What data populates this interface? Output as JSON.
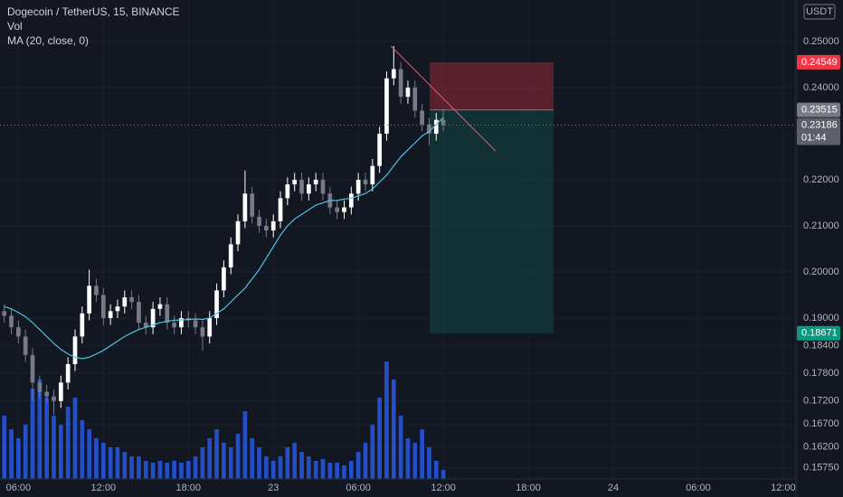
{
  "chart_data": {
    "type": "candlestick",
    "title": "Dogecoin / TetherUS, 15, BINANCE",
    "volume_label": "Vol",
    "ma_label": "MA (20, close, 0)",
    "currency": "USDT",
    "countdown": "01:44",
    "up_color": "#ffffff",
    "down_color": "#787b86",
    "volume_color": "#2962ff",
    "ma_color": "#4fc3e0",
    "grid": true,
    "xlim": [
      -1.3,
      54.9
    ],
    "ylim": [
      0.1551,
      0.259
    ],
    "xticks": [
      {
        "value": 0,
        "label": "06:00"
      },
      {
        "value": 6,
        "label": "12:00"
      },
      {
        "value": 12,
        "label": "18:00"
      },
      {
        "value": 18,
        "label": "23"
      },
      {
        "value": 24,
        "label": "06:00"
      },
      {
        "value": 30,
        "label": "12:00"
      },
      {
        "value": 36,
        "label": "18:00"
      },
      {
        "value": 42,
        "label": "24"
      },
      {
        "value": 48,
        "label": "06:00"
      },
      {
        "value": 54,
        "label": "12:00"
      }
    ],
    "yticks": [
      {
        "value": 0.25,
        "label": "0.25000"
      },
      {
        "value": 0.24,
        "label": "0.24000"
      },
      {
        "value": 0.22,
        "label": "0.22000"
      },
      {
        "value": 0.21,
        "label": "0.21000"
      },
      {
        "value": 0.2,
        "label": "0.20000"
      },
      {
        "value": 0.19,
        "label": "0.19000"
      },
      {
        "value": 0.184,
        "label": "0.18400"
      },
      {
        "value": 0.178,
        "label": "0.17800"
      },
      {
        "value": 0.172,
        "label": "0.17200"
      },
      {
        "value": 0.167,
        "label": "0.16700"
      },
      {
        "value": 0.162,
        "label": "0.16200"
      },
      {
        "value": 0.1575,
        "label": "0.15750"
      }
    ],
    "x": [
      -1,
      -0.5,
      0,
      0.5,
      1,
      1.5,
      2,
      2.5,
      3,
      3.5,
      4,
      4.5,
      5,
      5.5,
      6,
      6.5,
      7,
      7.5,
      8,
      8.5,
      9,
      9.5,
      10,
      10.5,
      11,
      11.5,
      12,
      12.5,
      13,
      13.5,
      14,
      14.5,
      15,
      15.5,
      16,
      16.5,
      17,
      17.5,
      18,
      18.5,
      19,
      19.5,
      20,
      20.5,
      21,
      21.5,
      22,
      22.5,
      23,
      23.5,
      24,
      24.5,
      25,
      25.5,
      26,
      26.5,
      27,
      27.5,
      28,
      28.5,
      29,
      29.5,
      30
    ],
    "open": [
      0.1915,
      0.1905,
      0.188,
      0.186,
      0.182,
      0.176,
      0.174,
      0.173,
      0.172,
      0.176,
      0.18,
      0.186,
      0.191,
      0.197,
      0.195,
      0.19,
      0.1915,
      0.1925,
      0.1945,
      0.1935,
      0.189,
      0.188,
      0.192,
      0.193,
      0.189,
      0.188,
      0.19,
      0.1895,
      0.188,
      0.186,
      0.19,
      0.196,
      0.201,
      0.206,
      0.211,
      0.217,
      0.212,
      0.21,
      0.209,
      0.211,
      0.216,
      0.219,
      0.22,
      0.217,
      0.219,
      0.22,
      0.217,
      0.214,
      0.213,
      0.214,
      0.217,
      0.22,
      0.219,
      0.223,
      0.23,
      0.242,
      0.244,
      0.238,
      0.24,
      0.235,
      0.232,
      0.23,
      0.233
    ],
    "high": [
      0.193,
      0.192,
      0.1895,
      0.1875,
      0.1835,
      0.1775,
      0.1755,
      0.1745,
      0.1775,
      0.1815,
      0.1875,
      0.1925,
      0.2005,
      0.1985,
      0.1965,
      0.193,
      0.194,
      0.196,
      0.196,
      0.195,
      0.1905,
      0.1935,
      0.1945,
      0.1945,
      0.1905,
      0.1915,
      0.1915,
      0.191,
      0.1895,
      0.1915,
      0.1975,
      0.2025,
      0.2075,
      0.2125,
      0.222,
      0.2185,
      0.2135,
      0.2115,
      0.2125,
      0.2175,
      0.2205,
      0.2215,
      0.2215,
      0.2205,
      0.2215,
      0.2215,
      0.2185,
      0.2155,
      0.2155,
      0.2185,
      0.2215,
      0.2215,
      0.2245,
      0.2315,
      0.2435,
      0.249,
      0.2455,
      0.2415,
      0.2415,
      0.2365,
      0.2335,
      0.2345,
      0.2352
    ],
    "low": [
      0.189,
      0.1865,
      0.1845,
      0.1805,
      0.172,
      0.1725,
      0.1715,
      0.169,
      0.1705,
      0.1745,
      0.1785,
      0.1845,
      0.1895,
      0.1935,
      0.1885,
      0.1885,
      0.19,
      0.191,
      0.192,
      0.1875,
      0.1865,
      0.1865,
      0.1905,
      0.1875,
      0.1865,
      0.1865,
      0.188,
      0.1865,
      0.183,
      0.1845,
      0.1885,
      0.1945,
      0.1995,
      0.2045,
      0.2095,
      0.2105,
      0.2085,
      0.2075,
      0.2075,
      0.2095,
      0.2145,
      0.2175,
      0.2155,
      0.2155,
      0.2175,
      0.2155,
      0.2125,
      0.2115,
      0.2115,
      0.2125,
      0.2155,
      0.2175,
      0.2175,
      0.2215,
      0.2285,
      0.2405,
      0.2365,
      0.2365,
      0.2335,
      0.2305,
      0.2275,
      0.2285,
      0.2305
    ],
    "close": [
      0.1905,
      0.188,
      0.186,
      0.182,
      0.176,
      0.174,
      0.173,
      0.172,
      0.176,
      0.18,
      0.186,
      0.191,
      0.197,
      0.195,
      0.19,
      0.1915,
      0.1925,
      0.1945,
      0.1935,
      0.189,
      0.188,
      0.192,
      0.193,
      0.189,
      0.188,
      0.19,
      0.1895,
      0.188,
      0.186,
      0.19,
      0.196,
      0.201,
      0.206,
      0.211,
      0.217,
      0.212,
      0.21,
      0.209,
      0.211,
      0.216,
      0.219,
      0.22,
      0.217,
      0.219,
      0.22,
      0.217,
      0.214,
      0.213,
      0.214,
      0.217,
      0.22,
      0.219,
      0.223,
      0.23,
      0.242,
      0.244,
      0.238,
      0.24,
      0.235,
      0.232,
      0.23,
      0.233,
      0.23186
    ],
    "volume": [
      70,
      55,
      45,
      60,
      100,
      110,
      90,
      70,
      60,
      80,
      90,
      65,
      55,
      45,
      40,
      35,
      35,
      30,
      25,
      25,
      20,
      18,
      20,
      18,
      20,
      18,
      20,
      25,
      35,
      45,
      55,
      40,
      35,
      50,
      75,
      45,
      35,
      25,
      20,
      25,
      35,
      40,
      30,
      25,
      20,
      22,
      18,
      18,
      15,
      20,
      30,
      40,
      60,
      90,
      130,
      110,
      70,
      45,
      40,
      55,
      35,
      20,
      10
    ],
    "ma": [
      0.1925,
      0.192,
      0.1912,
      0.1903,
      0.189,
      0.1875,
      0.186,
      0.1845,
      0.1832,
      0.1822,
      0.1815,
      0.1812,
      0.1815,
      0.1822,
      0.183,
      0.184,
      0.185,
      0.186,
      0.1868,
      0.1875,
      0.188,
      0.1885,
      0.189,
      0.1893,
      0.1895,
      0.1896,
      0.1897,
      0.1898,
      0.1897,
      0.19,
      0.191,
      0.192,
      0.1935,
      0.195,
      0.1965,
      0.1985,
      0.2005,
      0.203,
      0.2055,
      0.208,
      0.21,
      0.2115,
      0.2125,
      0.2135,
      0.2145,
      0.215,
      0.2155,
      0.2155,
      0.2158,
      0.216,
      0.2165,
      0.217,
      0.218,
      0.2195,
      0.221,
      0.223,
      0.225,
      0.2265,
      0.228,
      0.2295,
      0.2305,
      0.232,
      0.2335
    ],
    "position": {
      "x_start": 29.04,
      "x_end": 37.78,
      "stop": 0.24549,
      "entry": 0.23515,
      "target": 0.18671
    },
    "trendline": {
      "x": [
        26.3,
        33.7
      ],
      "y": [
        0.249,
        0.2262
      ]
    }
  }
}
